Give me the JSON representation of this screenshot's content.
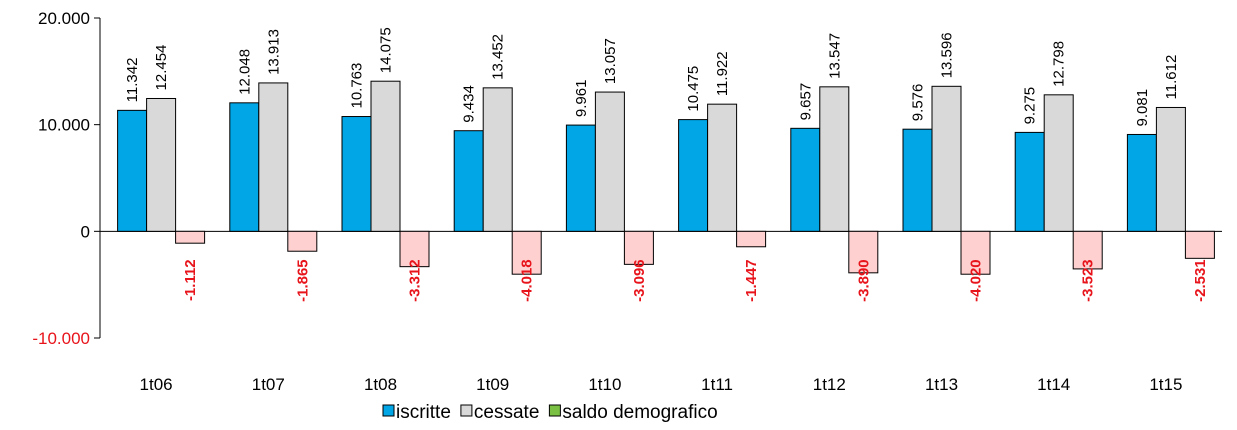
{
  "chart_data": {
    "type": "bar",
    "categories": [
      "1t06",
      "1t07",
      "1t08",
      "1t09",
      "1t10",
      "1t11",
      "1t12",
      "1t13",
      "1t14",
      "1t15"
    ],
    "series": [
      {
        "name": "iscritte",
        "color": "#00a6e6",
        "values": [
          11342,
          12048,
          10763,
          9434,
          9961,
          10475,
          9657,
          9576,
          9275,
          9081
        ],
        "labels": [
          "11.342",
          "12.048",
          "10.763",
          "9.434",
          "9.961",
          "10.475",
          "9.657",
          "9.576",
          "9.275",
          "9.081"
        ]
      },
      {
        "name": "cessate",
        "color": "#d9d9d9",
        "values": [
          12454,
          13913,
          14075,
          13452,
          13057,
          11922,
          13547,
          13596,
          12798,
          11612
        ],
        "labels": [
          "12.454",
          "13.913",
          "14.075",
          "13.452",
          "13.057",
          "11.922",
          "13.547",
          "13.596",
          "12.798",
          "11.612"
        ]
      },
      {
        "name": "saldo demografico",
        "color": "#ffd0d0",
        "legend_color": "#7ac143",
        "values": [
          -1112,
          -1865,
          -3312,
          -4018,
          -3096,
          -1447,
          -3890,
          -4020,
          -3523,
          -2531
        ],
        "labels": [
          "-1.112",
          "-1.865",
          "-3.312",
          "-4.018",
          "-3.096",
          "-1.447",
          "-3.890",
          "-4.020",
          "-3.523",
          "-2.531"
        ]
      }
    ],
    "y_ticks": [
      {
        "value": 20000,
        "label": "20.000"
      },
      {
        "value": 10000,
        "label": "10.000"
      },
      {
        "value": 0,
        "label": "0"
      },
      {
        "value": -10000,
        "label": "-10.000"
      }
    ],
    "ylim": [
      -10000,
      20000
    ],
    "grid": false,
    "legend_position": "bottom"
  }
}
